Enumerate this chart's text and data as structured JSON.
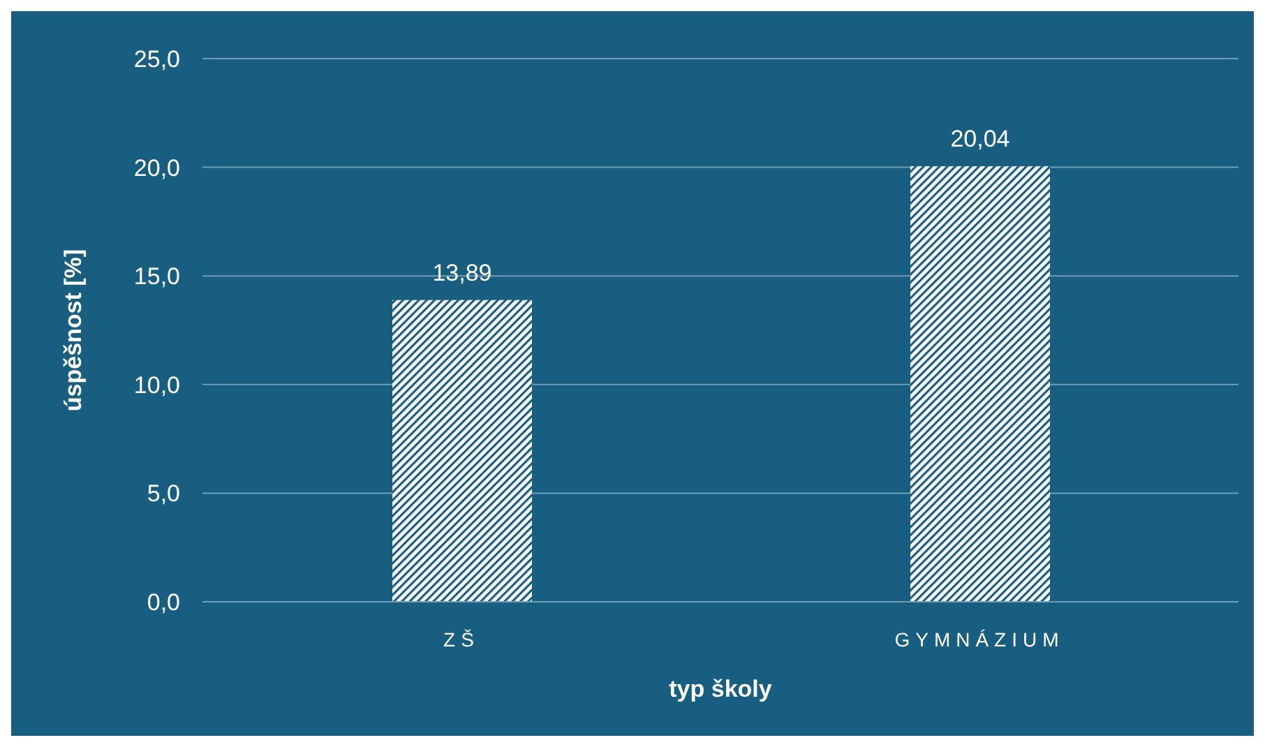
{
  "chart_data": {
    "type": "bar",
    "xlabel": "typ školy",
    "ylabel": "úspěšnost [%]",
    "categories": [
      "ZŠ",
      "GYMNÁZIUM"
    ],
    "values": [
      13.89,
      20.04
    ],
    "color": "#ffffff",
    "value_labels": [
      "13,89",
      "20,04"
    ],
    "ylim": [
      0,
      25
    ],
    "yticks": [
      {
        "value": 0,
        "label": "0,0"
      },
      {
        "value": 5,
        "label": "5,0"
      },
      {
        "value": 10,
        "label": "10,0"
      },
      {
        "value": 15,
        "label": "15,0"
      },
      {
        "value": 20,
        "label": "20,0"
      },
      {
        "value": 25,
        "label": "25,0"
      }
    ],
    "grid": "y"
  }
}
